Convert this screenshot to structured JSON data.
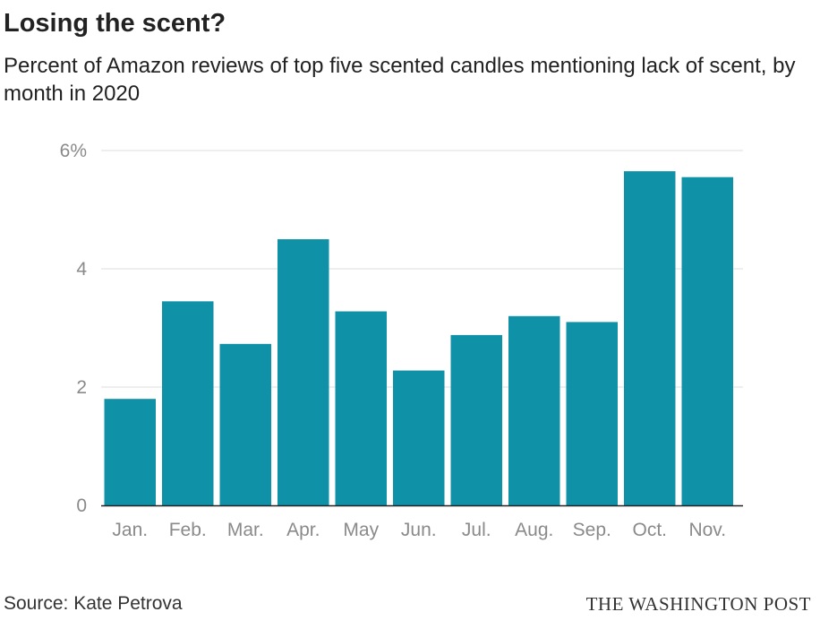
{
  "header": {
    "title": "Losing the scent?",
    "subtitle": "Percent of Amazon reviews of top five scented candles mentioning lack of scent, by month in 2020"
  },
  "footer": {
    "source": "Source: Kate Petrova",
    "brand": "THE WASHINGTON POST"
  },
  "colors": {
    "bar": "#0f92a8",
    "gridline": "#dddddd",
    "baseline": "#222222",
    "tick_text": "#8a8a8a"
  },
  "chart_data": {
    "type": "bar",
    "title": "Losing the scent?",
    "subtitle": "Percent of Amazon reviews of top five scented candles mentioning lack of scent, by month in 2020",
    "categories": [
      "Jan.",
      "Feb.",
      "Mar.",
      "Apr.",
      "May",
      "Jun.",
      "Jul.",
      "Aug.",
      "Sep.",
      "Oct.",
      "Nov."
    ],
    "values": [
      1.8,
      3.45,
      2.73,
      4.5,
      3.28,
      2.28,
      2.88,
      3.2,
      3.1,
      5.65,
      5.55
    ],
    "ylim": [
      0,
      6
    ],
    "yticks": [
      0,
      2,
      4,
      6
    ],
    "ytick_labels": [
      "0",
      "2",
      "4",
      "6%"
    ],
    "xlabel": "",
    "ylabel": "",
    "grid": true,
    "legend": "none"
  }
}
